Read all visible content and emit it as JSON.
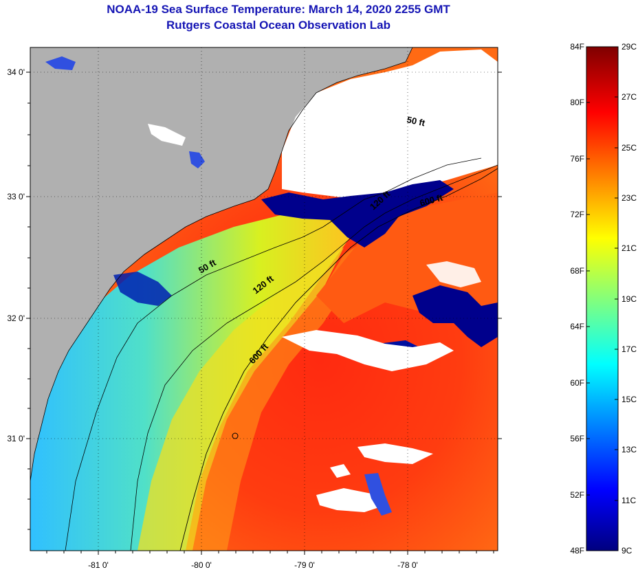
{
  "title": {
    "line1": "NOAA-19 Sea Surface Temperature:  March 14, 2020 2255 GMT",
    "line2": "Rutgers Coastal Ocean Observation Lab"
  },
  "map": {
    "lat_labels": [
      "34 0'",
      "33 0'",
      "32 0'",
      "31 0'"
    ],
    "lon_labels": [
      "-81 0'",
      "-80 0'",
      "-79 0'",
      "-78 0'"
    ],
    "contour_labels": [
      "50 ft",
      "120 ft",
      "600 ft",
      "50 ft",
      "120 ft",
      "600 ft"
    ],
    "colors": {
      "land": "#b0b0b0",
      "cloud": "#ffffff",
      "warm": "#ff3a10",
      "cold": "#00008c"
    }
  },
  "colorbar": {
    "fahrenheit": [
      "84F",
      "80F",
      "76F",
      "72F",
      "68F",
      "64F",
      "60F",
      "56F",
      "52F",
      "48F"
    ],
    "celsius": [
      "29C",
      "27C",
      "25C",
      "23C",
      "21C",
      "19C",
      "17C",
      "15C",
      "13C",
      "11C",
      "9C"
    ],
    "range_f": [
      48,
      84
    ],
    "range_c": [
      9,
      29
    ]
  }
}
